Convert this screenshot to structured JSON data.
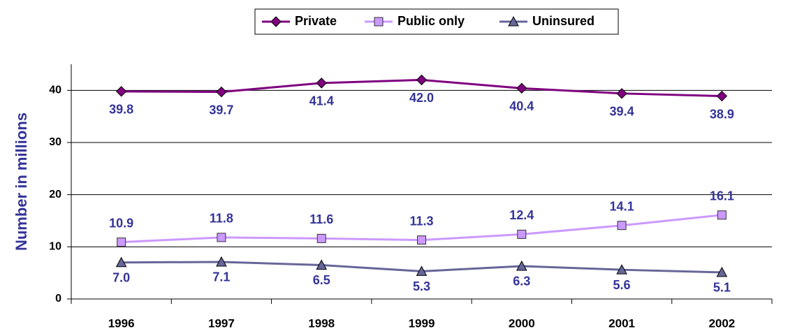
{
  "chart_data": {
    "type": "line",
    "y_label": "Number in millions",
    "categories": [
      "1996",
      "1997",
      "1998",
      "1999",
      "2000",
      "2001",
      "2002"
    ],
    "series": [
      {
        "name": "Private",
        "color": "#800080",
        "values": [
          39.8,
          39.7,
          41.4,
          42,
          40.4,
          39.4,
          38.9
        ],
        "value_labels": [
          "39.8",
          "39.7",
          "41.4",
          "42.0",
          "40.4",
          "39.4",
          "38.9"
        ]
      },
      {
        "name": "Public only",
        "color": "#CC99FF",
        "values": [
          10.9,
          11.8,
          11.6,
          11.3,
          12.4,
          14.1,
          16.1
        ],
        "value_labels": [
          "10.9",
          "11.8",
          "11.6",
          "11.3",
          "12.4",
          "14.1",
          "16.1"
        ]
      },
      {
        "name": "Uninsured",
        "color": "#666699",
        "values": [
          7,
          7.1,
          6.5,
          5.3,
          6.3,
          5.6,
          5.1
        ],
        "value_labels": [
          "7.0",
          "7.1",
          "6.5",
          "5.3",
          "6.3",
          "5.6",
          "5.1"
        ]
      }
    ],
    "ylim": [
      0,
      45
    ],
    "yticks": [
      0,
      10,
      20,
      30,
      40
    ],
    "grid": true,
    "legend": "top"
  }
}
